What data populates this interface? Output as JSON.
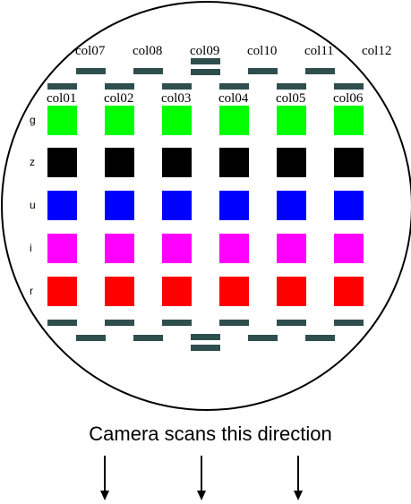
{
  "columns_top": [
    "col07",
    "col08",
    "col09",
    "col10",
    "col11",
    "col12"
  ],
  "columns_bottom": [
    "col01",
    "col02",
    "col03",
    "col04",
    "col05",
    "col06"
  ],
  "filters": [
    "g",
    "z",
    "u",
    "i",
    "r"
  ],
  "colors": {
    "g": "#00ff00",
    "z": "#000000",
    "u": "#0000ff",
    "i": "#ff00ff",
    "r": "#ff0000",
    "guide_ccd": "#2f4f4f",
    "outline": "#000000"
  },
  "caption": "Camera scans this direction",
  "icons": [
    "down-arrow-icon",
    "down-arrow-icon",
    "down-arrow-icon"
  ]
}
